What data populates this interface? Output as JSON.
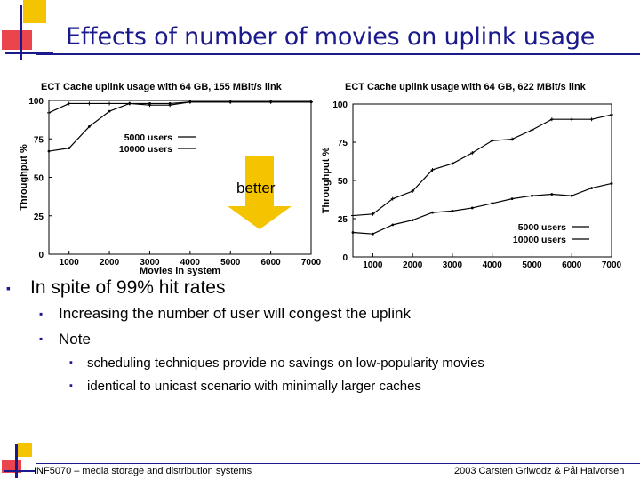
{
  "slide": {
    "title": "Effects of number of movies on uplink usage",
    "annotation": "better",
    "bullets": {
      "l1": "In spite of 99% hit rates",
      "l2a": "Increasing the number of user will congest the uplink",
      "l2b": "Note",
      "l3a": "scheduling techniques provide no savings on low-popularity movies",
      "l3b": "identical to unicast scenario with minimally larger caches"
    },
    "footer_left": "INF5070 – media storage and distribution systems",
    "footer_right": "2003  Carsten Griwodz & Pål Halvorsen",
    "colors": {
      "title": "#1a1a8c",
      "accent_yellow": "#f5c400",
      "accent_blue": "#1a1a8c",
      "accent_red": "#e8303a"
    }
  },
  "chart_data": [
    {
      "type": "line",
      "title": "ECT Cache uplink usage with 64 GB, 155 MBit/s link",
      "xlabel": "Movies in system",
      "ylabel": "Throughput %",
      "xlim": [
        500,
        7000
      ],
      "ylim": [
        0,
        100
      ],
      "xticks": [
        1000,
        2000,
        3000,
        4000,
        5000,
        6000,
        7000
      ],
      "yticks": [
        0,
        25,
        50,
        75,
        100
      ],
      "legend_position": "center",
      "series": [
        {
          "name": "5000 users",
          "x": [
            500,
            1000,
            1500,
            2000,
            2500,
            3000,
            3500,
            4000,
            5000,
            6000,
            7000
          ],
          "y": [
            67,
            69,
            83,
            93,
            98,
            98,
            98,
            99,
            99,
            99,
            99
          ]
        },
        {
          "name": "10000 users",
          "x": [
            500,
            1000,
            1500,
            2000,
            2500,
            3000,
            3500,
            4000,
            5000,
            6000,
            7000
          ],
          "y": [
            92,
            98,
            98,
            98,
            98,
            97,
            97,
            99,
            99,
            99,
            99
          ]
        }
      ]
    },
    {
      "type": "line",
      "title": "ECT Cache uplink usage with 64 GB, 622 MBit/s link",
      "xlabel": "",
      "ylabel": "Throughput %",
      "xlim": [
        500,
        7000
      ],
      "ylim": [
        0,
        100
      ],
      "xticks": [
        1000,
        2000,
        3000,
        4000,
        5000,
        6000,
        7000
      ],
      "yticks": [
        0,
        25,
        50,
        75,
        100
      ],
      "legend_position": "bottom-right",
      "series": [
        {
          "name": "5000 users",
          "x": [
            500,
            1000,
            1500,
            2000,
            2500,
            3000,
            3500,
            4000,
            4500,
            5000,
            5500,
            6000,
            6500,
            7000
          ],
          "y": [
            16,
            15,
            21,
            24,
            29,
            30,
            32,
            35,
            38,
            40,
            41,
            40,
            45,
            48
          ]
        },
        {
          "name": "10000 users",
          "x": [
            500,
            1000,
            1500,
            2000,
            2500,
            3000,
            3500,
            4000,
            4500,
            5000,
            5500,
            6000,
            6500,
            7000
          ],
          "y": [
            27,
            28,
            38,
            43,
            57,
            61,
            68,
            76,
            77,
            83,
            90,
            90,
            90,
            93
          ]
        }
      ]
    }
  ]
}
